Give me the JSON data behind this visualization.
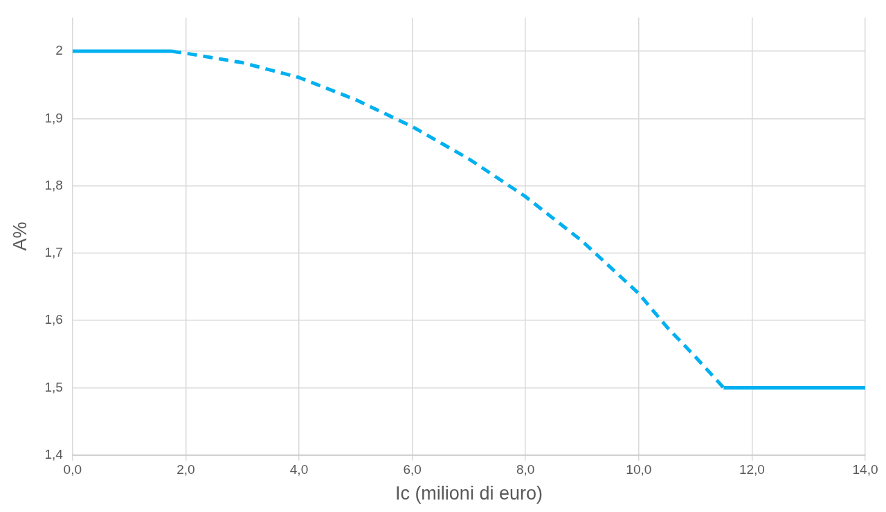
{
  "chart_data": {
    "type": "line",
    "xlabel": "Ic (milioni di euro)",
    "ylabel": "A%",
    "xlim": [
      0,
      14
    ],
    "ylim": [
      1.4,
      2.05
    ],
    "xticks": [
      {
        "value": 0,
        "label": "0,0"
      },
      {
        "value": 2,
        "label": "2,0"
      },
      {
        "value": 4,
        "label": "4,0"
      },
      {
        "value": 6,
        "label": "6,0"
      },
      {
        "value": 8,
        "label": "8,0"
      },
      {
        "value": 10,
        "label": "10,0"
      },
      {
        "value": 12,
        "label": "12,0"
      },
      {
        "value": 14,
        "label": "14,0"
      }
    ],
    "yticks": [
      {
        "value": 1.4,
        "label": "1,4"
      },
      {
        "value": 1.5,
        "label": "1,5"
      },
      {
        "value": 1.6,
        "label": "1,6"
      },
      {
        "value": 1.7,
        "label": "1,7"
      },
      {
        "value": 1.8,
        "label": "1,8"
      },
      {
        "value": 1.9,
        "label": "1,9"
      },
      2
    ],
    "grid": true,
    "legend": false,
    "marker": "none",
    "series": [
      {
        "color": "#00b0f0",
        "line_style": "solid",
        "x": [
          0,
          1.75
        ],
        "values": [
          2,
          2
        ]
      },
      {
        "color": "#00b0f0",
        "line_style": "dashed",
        "x": [
          1.75,
          2,
          3,
          4,
          5,
          6,
          7,
          8,
          9,
          10,
          10.5,
          11,
          11.5
        ],
        "values": [
          2,
          1.997,
          1.983,
          1.961,
          1.928,
          1.888,
          1.84,
          1.784,
          1.718,
          1.64,
          1.59,
          1.546,
          1.5
        ]
      },
      {
        "color": "#00b0f0",
        "line_style": "solid",
        "x": [
          11.5,
          14
        ],
        "values": [
          1.5,
          1.5
        ]
      }
    ]
  }
}
